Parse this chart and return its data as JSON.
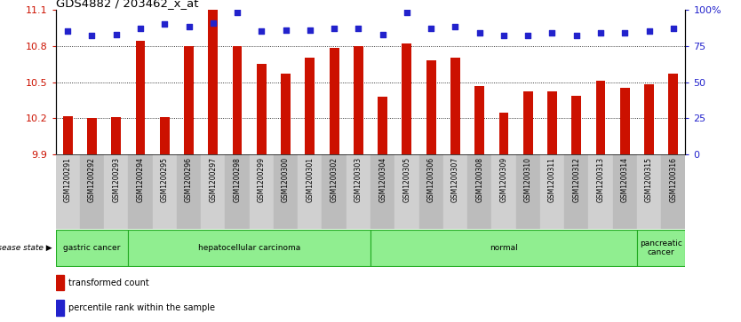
{
  "title": "GDS4882 / 203462_x_at",
  "samples": [
    "GSM1200291",
    "GSM1200292",
    "GSM1200293",
    "GSM1200294",
    "GSM1200295",
    "GSM1200296",
    "GSM1200297",
    "GSM1200298",
    "GSM1200299",
    "GSM1200300",
    "GSM1200301",
    "GSM1200302",
    "GSM1200303",
    "GSM1200304",
    "GSM1200305",
    "GSM1200306",
    "GSM1200307",
    "GSM1200308",
    "GSM1200309",
    "GSM1200310",
    "GSM1200311",
    "GSM1200312",
    "GSM1200313",
    "GSM1200314",
    "GSM1200315",
    "GSM1200316"
  ],
  "transformed_count": [
    10.22,
    10.2,
    10.21,
    10.84,
    10.21,
    10.8,
    11.1,
    10.8,
    10.65,
    10.57,
    10.7,
    10.78,
    10.8,
    10.38,
    10.82,
    10.68,
    10.7,
    10.47,
    10.25,
    10.42,
    10.42,
    10.39,
    10.51,
    10.45,
    10.48,
    10.57
  ],
  "percentile_rank": [
    85,
    82,
    83,
    87,
    90,
    88,
    91,
    98,
    85,
    86,
    86,
    87,
    87,
    83,
    98,
    87,
    88,
    84,
    82,
    82,
    84,
    82,
    84,
    84,
    85,
    87
  ],
  "disease_groups": [
    {
      "label": "gastric cancer",
      "start": 0,
      "end": 2
    },
    {
      "label": "hepatocellular carcinoma",
      "start": 3,
      "end": 12
    },
    {
      "label": "normal",
      "start": 13,
      "end": 23
    },
    {
      "label": "pancreatic\ncancer",
      "start": 24,
      "end": 25
    }
  ],
  "ylim_left": [
    9.9,
    11.1
  ],
  "yticks_left": [
    9.9,
    10.2,
    10.5,
    10.8,
    11.1
  ],
  "ylim_right": [
    0,
    100
  ],
  "yticks_right": [
    0,
    25,
    50,
    75,
    100
  ],
  "bar_color": "#cc1100",
  "dot_color": "#2222cc",
  "bg_color": "#ffffff",
  "col_color_even": "#d0d0d0",
  "col_color_odd": "#bcbcbc",
  "group_color": "#90ee90",
  "group_edge_color": "#22aa22",
  "legend_red": "#cc1100",
  "legend_blue": "#2222cc"
}
